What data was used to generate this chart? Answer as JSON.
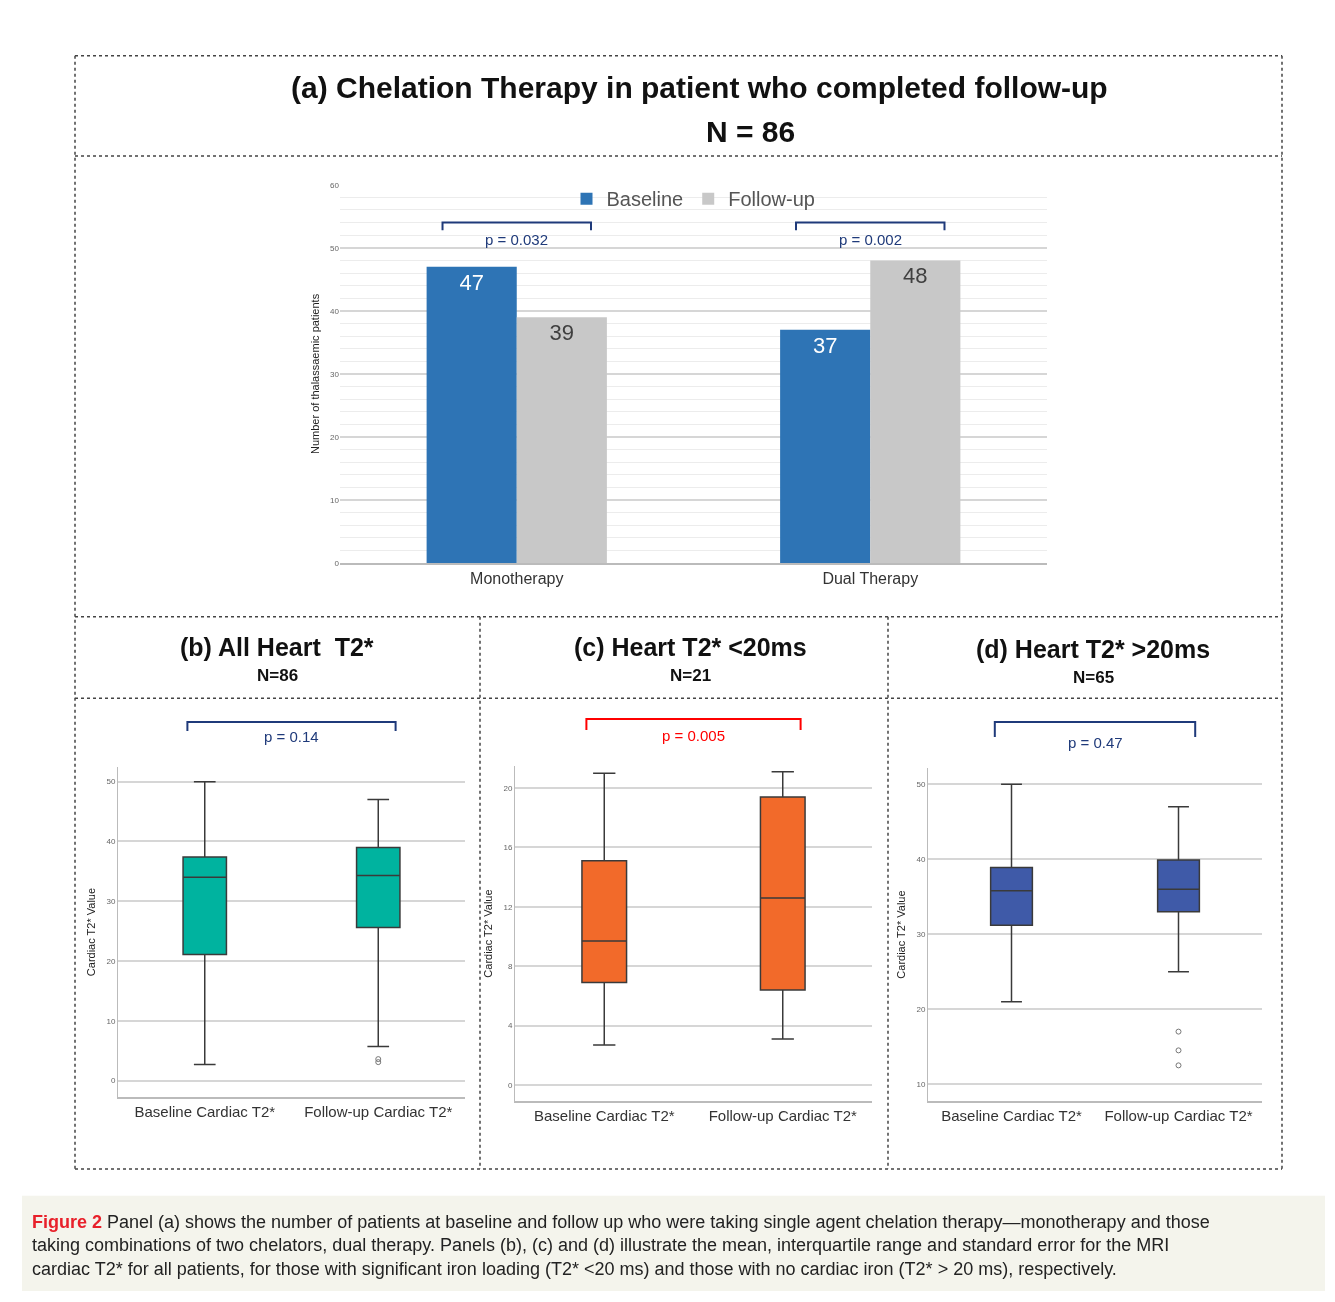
{
  "chart_data": [
    {
      "type": "bar",
      "title": "(a) Chelation Therapy in patient who completed follow-up",
      "subtitle": "N = 86",
      "ylabel": "Number of thalassaemic patients",
      "categories": [
        "Monotherapy",
        "Dual Therapy"
      ],
      "series": [
        {
          "name": "Baseline",
          "color": "#2e74b5",
          "values": [
            47,
            37
          ]
        },
        {
          "name": "Follow-up",
          "color": "#c8c8c8",
          "values": [
            39,
            48
          ]
        }
      ],
      "ylim": [
        0,
        60
      ],
      "yticks": [
        0,
        10,
        20,
        30,
        40,
        50,
        60
      ],
      "grid": "y",
      "legend": "top",
      "data_labels": true,
      "annotations": [
        "p = 0.032",
        "p = 0.002"
      ]
    },
    {
      "type": "box",
      "title": "(b) All Heart  T2*",
      "subtitle": "N=86",
      "ylabel": "Cardiac T2* Value",
      "categories": [
        "Baseline Cardiac T2*",
        "Follow-up Cardiac T2*"
      ],
      "color": "#00b39f",
      "boxes": [
        {
          "low": 2.7,
          "q1": 21.1,
          "median": 34.0,
          "q3": 37.4,
          "high": 50
        },
        {
          "low": 5.7,
          "q1": 25.6,
          "median": 34.3,
          "q3": 39.0,
          "high": 47.0,
          "outliers": [
            3.6,
            3.1
          ]
        }
      ],
      "ylim": [
        -2.8,
        52.5
      ],
      "yticks": [
        0,
        10,
        20,
        30,
        40,
        50
      ],
      "grid": "y",
      "annotations": [
        "p = 0.14"
      ]
    },
    {
      "type": "box",
      "title": "(c) Heart T2* <20ms",
      "subtitle": "N=21",
      "ylabel": "Cardiac T2* Value",
      "categories": [
        "Baseline Cardiac T2*",
        "Follow-up Cardiac T2*"
      ],
      "color": "#f26a2a",
      "boxes": [
        {
          "low": 2.7,
          "q1": 6.9,
          "median": 9.7,
          "q3": 15.1,
          "high": 21.0
        },
        {
          "low": 3.1,
          "q1": 6.4,
          "median": 12.6,
          "q3": 19.4,
          "high": 21.1
        }
      ],
      "ylim": [
        -1.1,
        21.5
      ],
      "yticks": [
        0,
        4,
        8,
        12,
        16,
        20
      ],
      "grid": "y",
      "annotations": [
        "p = 0.005"
      ]
    },
    {
      "type": "box",
      "title": "(d) Heart T2* >20ms",
      "subtitle": "N=65",
      "ylabel": "Cardiac T2* Value",
      "categories": [
        "Baseline Cardiac T2*",
        "Follow-up Cardiac T2*"
      ],
      "color": "#3f5aa8",
      "boxes": [
        {
          "low": 21.0,
          "q1": 31.2,
          "median": 35.8,
          "q3": 38.9,
          "high": 50
        },
        {
          "low": 25.0,
          "q1": 33.0,
          "median": 36.0,
          "q3": 39.9,
          "high": 47.0,
          "outliers": [
            17.0,
            14.5,
            12.5
          ]
        }
      ],
      "ylim": [
        7.7,
        52.2
      ],
      "yticks": [
        10,
        20,
        30,
        40,
        50
      ],
      "grid": "y",
      "annotations": [
        "p = 0.47",
        "Figure 2 Panel (a) shows the number of patients at baseline and follow up who were taking single agent chelation therapy—monotherapy and those taking combinations of two chelators, dual therapy. Panels (b), (c) and (d) illustrate the mean, interquartile range and standard error for the MRI cardiac T2* for all patients, for those with significant iron loading (T2* <20 ms) and those with no cardiac iron (T2* > 20 ms), respectively."
      ]
    }
  ]
}
